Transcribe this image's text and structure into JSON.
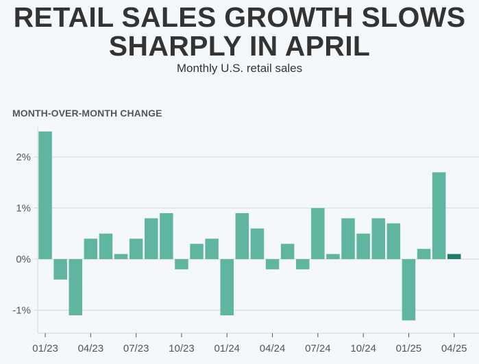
{
  "header": {
    "title_line1": "RETAIL SALES GROWTH SLOWS",
    "title_line2": "SHARPLY IN APRIL",
    "subtitle": "Monthly U.S. retail sales",
    "section_label": "MONTH-OVER-MONTH CHANGE"
  },
  "colors": {
    "bar": "#5fb5a0",
    "highlight": "#1f7d68",
    "grid": "#d6dde3",
    "axis": "#555555"
  },
  "chart_data": {
    "type": "bar",
    "title": "Retail sales growth slows sharply in April",
    "subtitle": "Monthly U.S. retail sales",
    "ylabel": "Month-over-month change",
    "categories": [
      "01/23",
      "02/23",
      "03/23",
      "04/23",
      "05/23",
      "06/23",
      "07/23",
      "08/23",
      "09/23",
      "10/23",
      "11/23",
      "12/23",
      "01/24",
      "02/24",
      "03/24",
      "04/24",
      "05/24",
      "06/24",
      "07/24",
      "08/24",
      "09/24",
      "10/24",
      "11/24",
      "12/24",
      "01/25",
      "02/25",
      "03/25",
      "04/25"
    ],
    "values": [
      2.5,
      -0.4,
      -1.1,
      0.4,
      0.5,
      0.1,
      0.4,
      0.8,
      0.9,
      -0.2,
      0.3,
      0.4,
      -1.1,
      0.9,
      0.6,
      -0.2,
      0.3,
      -0.2,
      1.0,
      0.1,
      0.8,
      0.5,
      0.8,
      0.7,
      -1.2,
      0.2,
      1.7,
      0.1
    ],
    "highlight_index": 27,
    "ylim": [
      -1.45,
      2.6
    ],
    "yticks": [
      -1,
      0,
      1,
      2
    ],
    "ytick_labels": [
      "-1%",
      "0%",
      "1%",
      "2%"
    ],
    "xtick_indices": [
      0,
      3,
      6,
      9,
      12,
      15,
      18,
      21,
      24,
      27
    ],
    "xtick_labels": [
      "01/23",
      "04/23",
      "07/23",
      "10/23",
      "01/24",
      "04/24",
      "07/24",
      "10/24",
      "01/25",
      "04/25"
    ],
    "grid": true
  }
}
